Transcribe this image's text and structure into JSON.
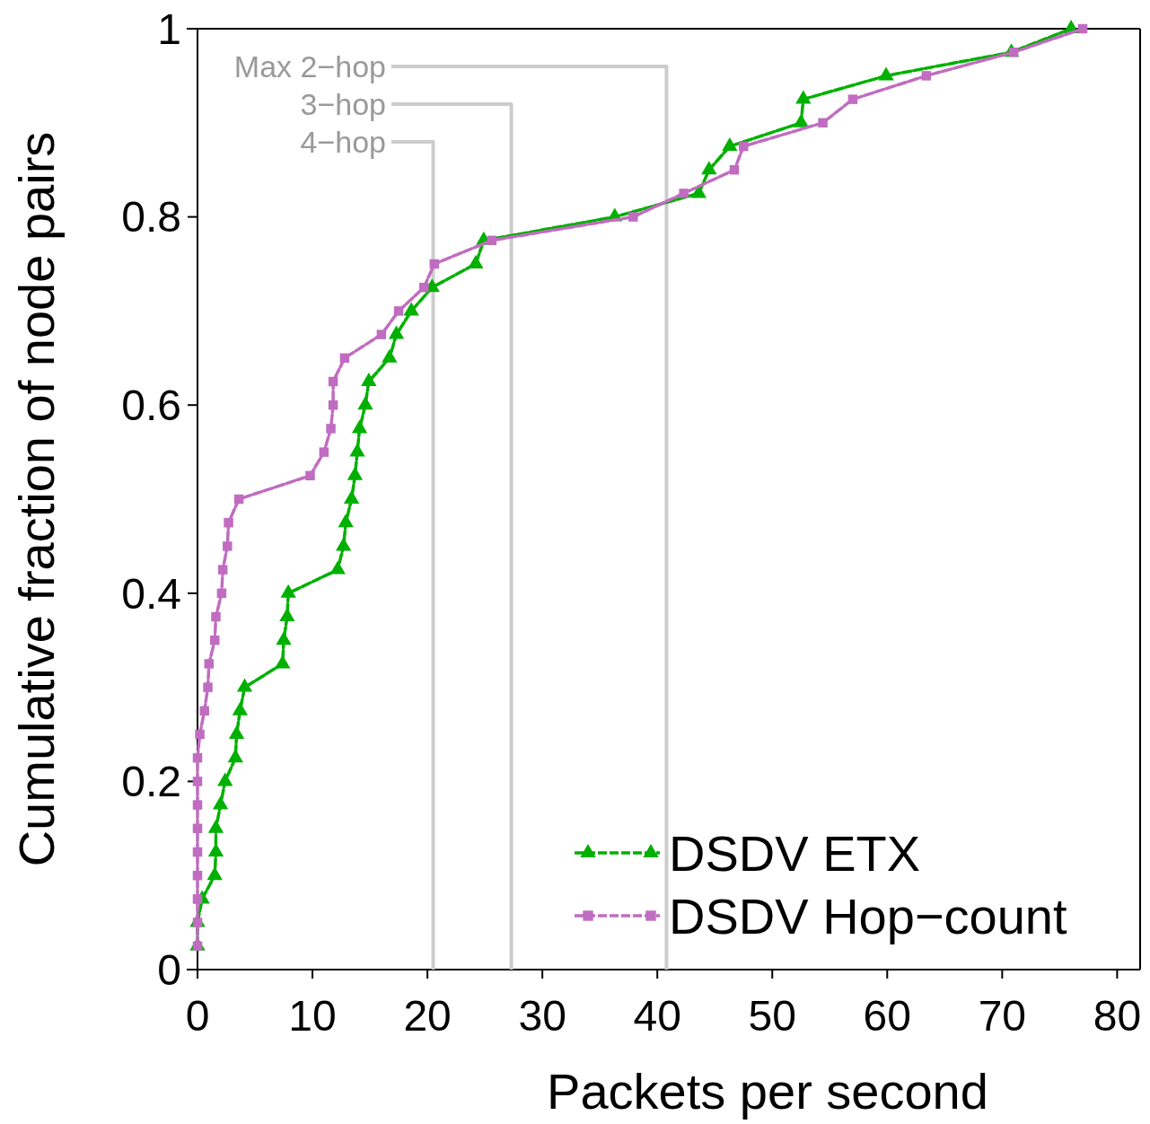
{
  "chart_data": {
    "type": "line",
    "xlabel": "Packets per second",
    "ylabel": "Cumulative fraction of node pairs",
    "xlim": [
      0,
      82
    ],
    "ylim": [
      0,
      1
    ],
    "xticks": [
      0,
      10,
      20,
      30,
      40,
      50,
      60,
      70,
      80
    ],
    "yticks": [
      0,
      {
        "value": 0.2,
        "label": "0.2"
      },
      {
        "value": 0.4,
        "label": "0.4"
      },
      {
        "value": 0.6,
        "label": "0.6"
      },
      {
        "value": 0.8,
        "label": "0.8"
      },
      1
    ],
    "grid": false,
    "legend": "bottom right",
    "ref_lines": [
      {
        "axis": "x",
        "value": 40.8,
        "label": "Max 2−hop",
        "color": "#cccccc"
      },
      {
        "axis": "x",
        "value": 27.3,
        "label": "3−hop",
        "color": "#cccccc"
      },
      {
        "axis": "x",
        "value": 20.5,
        "label": "4−hop",
        "color": "#cccccc"
      }
    ],
    "series": [
      {
        "name": "DSDV ETX",
        "color": "#00b000",
        "marker": "triangle",
        "line_style": "dashed",
        "x": [
          0,
          0,
          0.4,
          1.5,
          1.6,
          1.6,
          2.0,
          2.4,
          3.3,
          3.4,
          3.7,
          4.1,
          7.4,
          7.5,
          7.8,
          7.9,
          12.2,
          12.7,
          12.9,
          13.4,
          13.7,
          13.9,
          14.1,
          14.6,
          14.9,
          16.7,
          17.3,
          18.6,
          20.4,
          24.2,
          24.9,
          36.3,
          43.6,
          44.5,
          46.3,
          52.5,
          52.7,
          59.9,
          70.8,
          76.0
        ],
        "values": [
          0.025,
          0.05,
          0.075,
          0.1,
          0.125,
          0.15,
          0.175,
          0.2,
          0.225,
          0.25,
          0.275,
          0.3,
          0.325,
          0.35,
          0.375,
          0.4,
          0.425,
          0.45,
          0.475,
          0.5,
          0.525,
          0.55,
          0.575,
          0.6,
          0.625,
          0.65,
          0.675,
          0.7,
          0.725,
          0.75,
          0.775,
          0.8,
          0.825,
          0.85,
          0.875,
          0.9,
          0.925,
          0.95,
          0.975,
          1.0
        ]
      },
      {
        "name": "DSDV Hop−count",
        "color": "#c06cc0",
        "marker": "square",
        "line_style": "dashed",
        "x": [
          0,
          0,
          0,
          0,
          0,
          0,
          0,
          0,
          0,
          0.2,
          0.6,
          0.9,
          1.0,
          1.5,
          1.6,
          2.1,
          2.2,
          2.6,
          2.7,
          3.6,
          9.8,
          11.0,
          11.6,
          11.8,
          11.8,
          12.8,
          16.0,
          17.5,
          19.7,
          20.6,
          25.6,
          37.9,
          42.3,
          46.7,
          47.5,
          54.4,
          57.0,
          63.4,
          71.0,
          77.0
        ],
        "values": [
          0.025,
          0.05,
          0.075,
          0.1,
          0.125,
          0.15,
          0.175,
          0.2,
          0.225,
          0.25,
          0.275,
          0.3,
          0.325,
          0.35,
          0.375,
          0.4,
          0.425,
          0.45,
          0.475,
          0.5,
          0.525,
          0.55,
          0.575,
          0.6,
          0.625,
          0.65,
          0.675,
          0.7,
          0.725,
          0.75,
          0.775,
          0.8,
          0.825,
          0.85,
          0.875,
          0.9,
          0.925,
          0.95,
          0.975,
          1.0
        ]
      }
    ]
  }
}
